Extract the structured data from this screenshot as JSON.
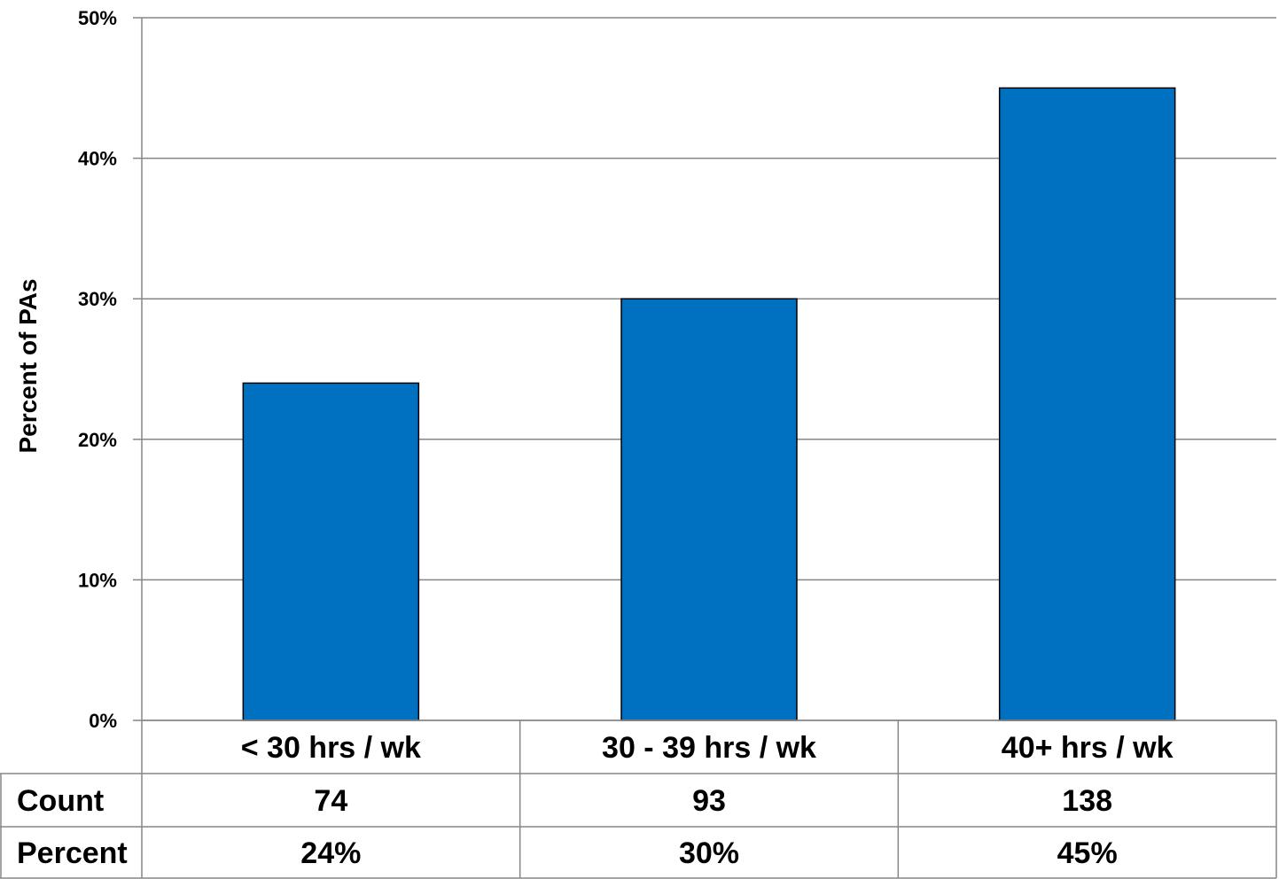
{
  "chart_data": {
    "type": "bar",
    "categories": [
      "< 30 hrs / wk",
      "30 - 39 hrs / wk",
      "40+ hrs / wk"
    ],
    "values": [
      24,
      30,
      45
    ],
    "ylabel": "Percent of PAs",
    "xlabel": "",
    "ylim": [
      0,
      50
    ],
    "yticks": [
      "0%",
      "10%",
      "20%",
      "30%",
      "40%",
      "50%"
    ],
    "grid": true,
    "bar_color": "#0070C0",
    "data_table": {
      "rows": [
        {
          "label": "Count",
          "values": [
            "74",
            "93",
            "138"
          ]
        },
        {
          "label": "Percent",
          "values": [
            "24%",
            "30%",
            "45%"
          ]
        }
      ]
    }
  }
}
